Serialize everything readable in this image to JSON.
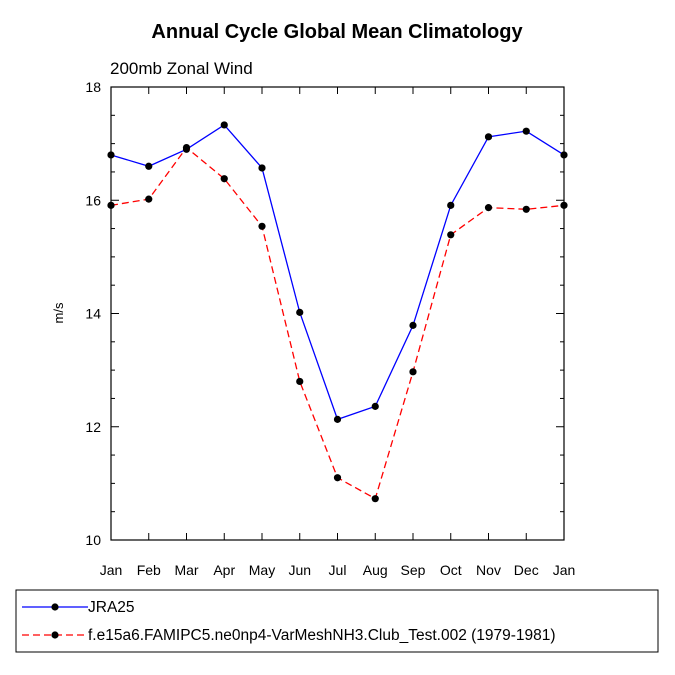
{
  "chart_data": {
    "type": "line",
    "title": "Annual Cycle Global Mean Climatology",
    "subtitle": "200mb Zonal Wind",
    "ylabel": "m/s",
    "xlabel": "",
    "categories": [
      "Jan",
      "Feb",
      "Mar",
      "Apr",
      "May",
      "Jun",
      "Jul",
      "Aug",
      "Sep",
      "Oct",
      "Nov",
      "Dec",
      "Jan"
    ],
    "ylim": [
      10,
      18
    ],
    "yticks": [
      10,
      12,
      14,
      16,
      18
    ],
    "grid": false,
    "legend_position": "bottom",
    "series": [
      {
        "name": "JRA25",
        "color": "#0000ff",
        "dash": "solid",
        "marker": "filled-circle",
        "values": [
          16.8,
          16.6,
          16.9,
          17.33,
          16.57,
          14.02,
          12.13,
          12.36,
          13.79,
          15.91,
          17.12,
          17.22,
          16.8
        ]
      },
      {
        "name": "f.e15a6.FAMIPC5.ne0np4-VarMeshNH3.Club_Test.002 (1979-1981)",
        "color": "#ff0000",
        "dash": "dashed",
        "marker": "filled-circle",
        "values": [
          15.91,
          16.02,
          16.93,
          16.38,
          15.54,
          12.8,
          11.1,
          10.73,
          12.97,
          15.39,
          15.87,
          15.84,
          15.91
        ]
      }
    ]
  }
}
